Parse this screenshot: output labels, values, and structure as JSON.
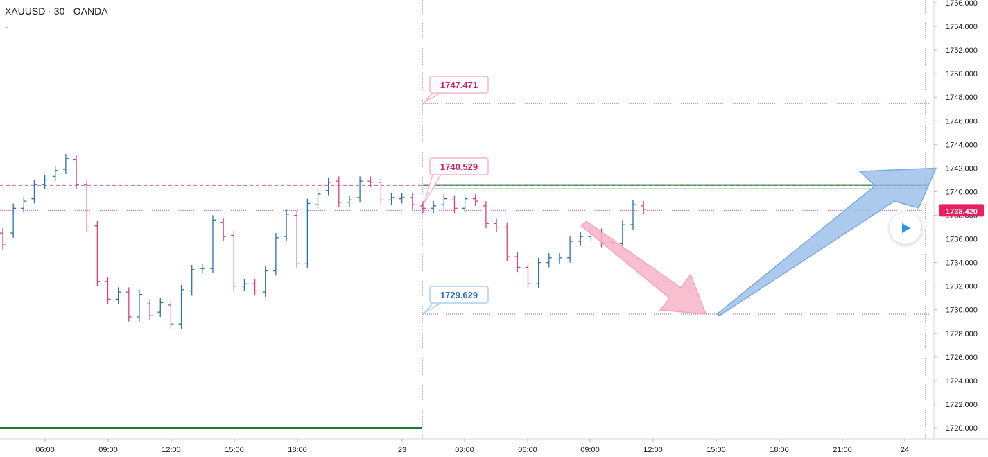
{
  "header": {
    "symbol_line": "XAUUSD · 30 · OANDA",
    "sub_line": "."
  },
  "colors": {
    "up": "#2962ff",
    "up_bar": "#2a71a8",
    "down": "#d6427a",
    "green_line": "#1b7a2e",
    "target_label": "#d81b60",
    "support_label": "#2f6fb3",
    "price_badge": "#e91e63",
    "pink_arrow": "#f7b4c9",
    "blue_arrow": "#8fb8e8"
  },
  "chart_data": {
    "type": "ohlc",
    "symbol": "XAUUSD",
    "interval": "30",
    "ylim": [
      1719,
      1756.5
    ],
    "y_ticks": [
      "1720.000",
      "1722.000",
      "1724.000",
      "1726.000",
      "1728.000",
      "1730.000",
      "1732.000",
      "1734.000",
      "1736.000",
      "1738.000",
      "1740.000",
      "1742.000",
      "1744.000",
      "1746.000",
      "1748.000",
      "1750.000",
      "1752.000",
      "1754.000",
      "1756.000"
    ],
    "x_ticks": [
      "06:00",
      "09:00",
      "12:00",
      "15:00",
      "18:00",
      "23",
      "03:00",
      "06:00",
      "09:00",
      "12:00",
      "15:00",
      "18:00",
      "21:00",
      "24"
    ],
    "current_price": "1738.420",
    "horizontal_levels": [
      {
        "label": "1747.471",
        "price": 1747.471,
        "style": "dotted",
        "color": "pink"
      },
      {
        "label": "1740.529",
        "price": 1740.529,
        "style": "dashed",
        "color": "pink"
      },
      {
        "label": "1729.629",
        "price": 1729.629,
        "style": "dotted",
        "color": "purple"
      }
    ],
    "green_levels": [
      1740.55,
      1740.25,
      1720.0
    ],
    "bars": [
      [
        1736.5,
        1735.5
      ],
      [
        1736.5,
        1738.6
      ],
      [
        1738.6,
        1739.2
      ],
      [
        1739.4,
        1740.6
      ],
      [
        1740.6,
        1741.0
      ],
      [
        1741.3,
        1741.8
      ],
      [
        1741.9,
        1742.8
      ],
      [
        1742.7,
        1740.6
      ],
      [
        1740.6,
        1737.0
      ],
      [
        1737.1,
        1732.4
      ],
      [
        1732.4,
        1730.9
      ],
      [
        1730.9,
        1731.5
      ],
      [
        1731.5,
        1729.4
      ],
      [
        1729.4,
        1731.3
      ],
      [
        1730.5,
        1729.5
      ],
      [
        1729.8,
        1730.6
      ],
      [
        1730.4,
        1728.8
      ],
      [
        1728.8,
        1731.7
      ],
      [
        1731.6,
        1733.4
      ],
      [
        1733.5,
        1733.5
      ],
      [
        1733.5,
        1737.6
      ],
      [
        1737.4,
        1736.2
      ],
      [
        1736.3,
        1732.0
      ],
      [
        1732.0,
        1732.2
      ],
      [
        1732.2,
        1731.6
      ],
      [
        1731.5,
        1733.3
      ],
      [
        1733.3,
        1736.1
      ],
      [
        1736.2,
        1738.1
      ],
      [
        1738.0,
        1733.9
      ],
      [
        1733.9,
        1739.0
      ],
      [
        1738.9,
        1739.8
      ],
      [
        1740.1,
        1740.8
      ],
      [
        1740.9,
        1739.1
      ],
      [
        1739.1,
        1739.3
      ],
      [
        1739.5,
        1740.9
      ],
      [
        1740.9,
        1740.8
      ],
      [
        1740.8,
        1739.3
      ],
      [
        1739.3,
        1739.5
      ],
      [
        1739.4,
        1739.5
      ],
      [
        1739.5,
        1738.9
      ],
      [
        1738.8,
        1738.6
      ],
      [
        1738.6,
        1738.8
      ],
      [
        1738.9,
        1739.4
      ],
      [
        1739.3,
        1738.6
      ],
      [
        1738.6,
        1739.4
      ],
      [
        1739.4,
        1739.2
      ],
      [
        1738.8,
        1737.3
      ],
      [
        1737.3,
        1737.0
      ],
      [
        1737.0,
        1734.5
      ],
      [
        1734.5,
        1733.6
      ],
      [
        1733.6,
        1732.2
      ],
      [
        1732.2,
        1734.0
      ],
      [
        1734.0,
        1734.4
      ],
      [
        1734.3,
        1734.4
      ],
      [
        1734.4,
        1735.8
      ],
      [
        1735.8,
        1736.2
      ],
      [
        1736.2,
        1736.6
      ],
      [
        1736.5,
        1735.7
      ],
      [
        1735.7,
        1735.6
      ],
      [
        1735.6,
        1737.2
      ],
      [
        1737.2,
        1738.9
      ],
      [
        1738.8,
        1738.5
      ]
    ],
    "projection": {
      "down_arrow": {
        "from": 1737.3,
        "to": 1729.629
      },
      "up_arrow": {
        "from": 1729.629,
        "to": 1742.0
      }
    }
  },
  "play_button": {
    "icon": "play-icon"
  }
}
